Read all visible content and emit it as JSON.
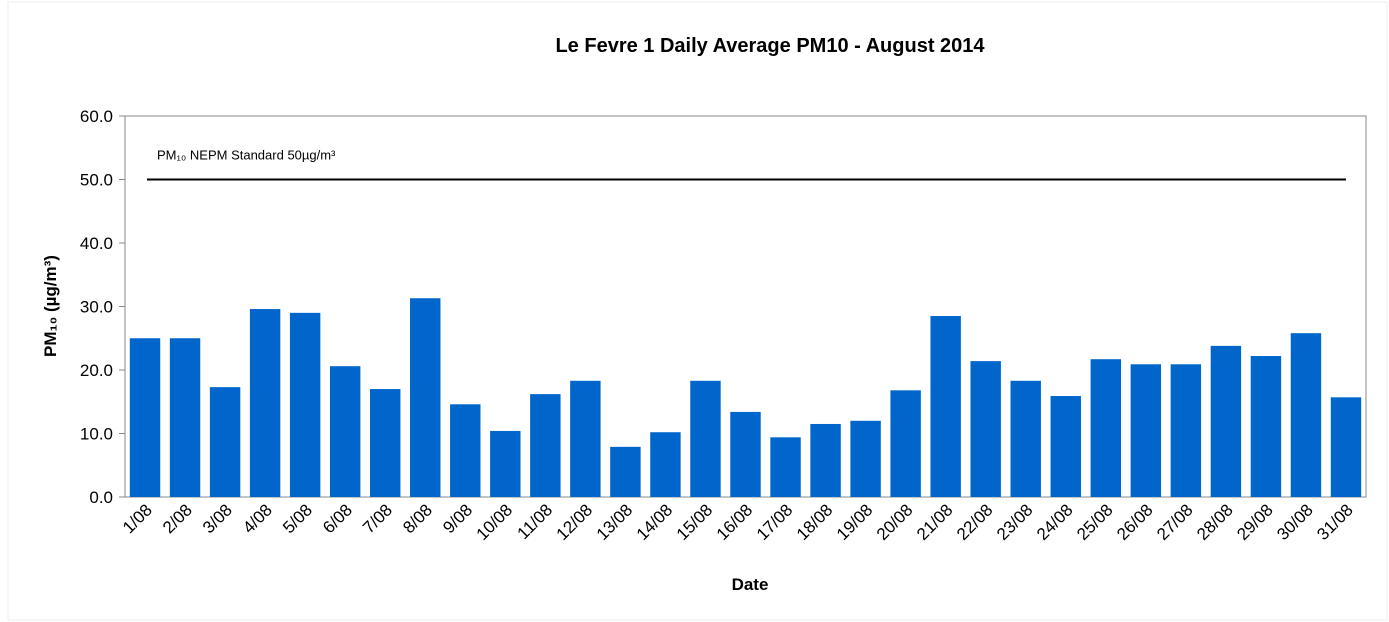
{
  "chart_data": {
    "type": "bar",
    "title": "Le Fevre 1 Daily Average PM10 - August 2014",
    "x_label": "Date",
    "y_label": "PM₁₀ (µg/m³)",
    "categories": [
      "1/08",
      "2/08",
      "3/08",
      "4/08",
      "5/08",
      "6/08",
      "7/08",
      "8/08",
      "9/08",
      "10/08",
      "11/08",
      "12/08",
      "13/08",
      "14/08",
      "15/08",
      "16/08",
      "17/08",
      "18/08",
      "19/08",
      "20/08",
      "21/08",
      "22/08",
      "23/08",
      "24/08",
      "25/08",
      "26/08",
      "27/08",
      "28/08",
      "29/08",
      "30/08",
      "31/08"
    ],
    "values": [
      25.0,
      25.0,
      17.3,
      29.6,
      29.0,
      20.6,
      17.0,
      31.3,
      14.6,
      10.4,
      16.2,
      18.3,
      7.9,
      10.2,
      18.3,
      13.4,
      9.4,
      11.5,
      12.0,
      16.8,
      28.5,
      21.4,
      18.3,
      15.9,
      21.7,
      20.9,
      20.9,
      23.8,
      22.2,
      25.8,
      15.7
    ],
    "color": "#0066cc",
    "ylim": [
      0,
      60
    ],
    "yticks": [
      {
        "value": 0,
        "label": "0.0"
      },
      {
        "value": 10,
        "label": "10.0"
      },
      {
        "value": 20,
        "label": "20.0"
      },
      {
        "value": 30,
        "label": "30.0"
      },
      {
        "value": 40,
        "label": "40.0"
      },
      {
        "value": 50,
        "label": "50.0"
      },
      {
        "value": 60,
        "label": "60.0"
      }
    ],
    "grid": false,
    "reference_line": {
      "value": 50,
      "label": "PM₁₀ NEPM Standard 50µg/m³",
      "color": "#000000"
    }
  }
}
